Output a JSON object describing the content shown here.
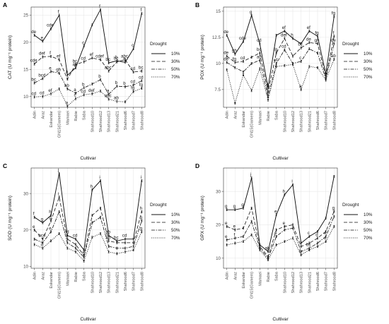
{
  "figure": {
    "xlabel": "Cultivar",
    "legend": {
      "title": "Drought",
      "labels": [
        "10%",
        "30%",
        "50%",
        "70%"
      ]
    },
    "colors": {
      "series": "#111111",
      "grid": "#dddddd"
    }
  },
  "chart_data": [
    {
      "type": "line",
      "panel": "A",
      "ylabel": "CAT (U mg⁻¹ protein)",
      "ylim": [
        8,
        26.5
      ],
      "yticks": [
        10,
        15,
        20,
        25
      ],
      "legend": "right",
      "grid": true,
      "categories": [
        "Adin",
        "Araz",
        "Eskandar",
        "GN15(Gamem)",
        "Mamaei",
        "Rabie",
        "Saba",
        "Shahrood10",
        "Shahrood12",
        "Shahrood13",
        "Shahrood21",
        "Shahrood6",
        "Shahrood7",
        "Shahrood8"
      ],
      "series": [
        {
          "name": "10%",
          "values": [
            21.3,
            20.2,
            22.5,
            25.0,
            13.9,
            15.3,
            19.3,
            23.2,
            26.0,
            16.2,
            16.6,
            16.3,
            18.8,
            25.3
          ],
          "labels": [
            "de",
            "e",
            "cde",
            "f",
            "a",
            "ab",
            "c",
            "",
            "f",
            "bc",
            "b",
            "b",
            "c",
            "f"
          ]
        },
        {
          "name": "30%",
          "values": [
            16.0,
            17.3,
            17.4,
            16.8,
            13.2,
            15.9,
            16.4,
            17.1,
            16.8,
            14.7,
            16.4,
            16.8,
            14.5,
            14.7
          ],
          "labels": [
            "cde",
            "def",
            "f",
            "ef",
            "",
            "bc",
            "cd",
            "ef",
            "cdef",
            "abc",
            "bc",
            "abc",
            "cd",
            "bc"
          ]
        },
        {
          "name": "50%",
          "values": [
            12.5,
            13.3,
            14.6,
            14.3,
            11.4,
            10.6,
            11.6,
            12.3,
            13.1,
            10.4,
            11.9,
            11.8,
            12.1,
            12.9
          ],
          "labels": [
            "bc",
            "bcd",
            "e",
            "gh",
            "ab",
            "a",
            "b",
            "",
            "b",
            "a",
            "b",
            "b",
            "cd",
            "cd"
          ]
        },
        {
          "name": "70%",
          "values": [
            9.9,
            10.0,
            10.5,
            11.4,
            8.2,
            9.6,
            10.3,
            10.5,
            11.0,
            9.5,
            9.1,
            9.0,
            10.9,
            11.5
          ],
          "labels": [
            "cd",
            "cd",
            "ef",
            "",
            "a",
            "c",
            "cd",
            "def",
            "",
            "abc",
            "ab",
            "",
            "fg",
            "fg"
          ]
        }
      ]
    },
    {
      "type": "line",
      "panel": "B",
      "ylabel": "POX (U mg⁻¹ protein)",
      "ylim": [
        5.8,
        15.4
      ],
      "yticks": [
        7.5,
        10.0,
        12.5,
        15.0
      ],
      "legend": "right",
      "grid": true,
      "categories": [
        "Adin",
        "Araz",
        "Eskandar",
        "GN15(Gamem)",
        "Mamaei",
        "Rabie",
        "Saba",
        "Shahrood10",
        "Shahrood12",
        "Shahrood13",
        "Shahrood21",
        "Shahrood6",
        "Shahrood7",
        "Shahrood8"
      ],
      "series": [
        {
          "name": "10%",
          "values": [
            12.7,
            10.9,
            12.1,
            14.6,
            11.9,
            7.7,
            12.7,
            13.1,
            12.4,
            11.9,
            13.1,
            12.6,
            9.0,
            14.5
          ],
          "labels": [
            "de",
            "gh",
            "cde",
            "g",
            "cd",
            "a",
            "",
            "ef",
            "h",
            "",
            "ef",
            "fg",
            "",
            "fg"
          ]
        },
        {
          "name": "30%",
          "values": [
            10.7,
            10.1,
            10.2,
            10.6,
            11.0,
            7.3,
            11.0,
            12.4,
            10.7,
            11.5,
            12.0,
            11.9,
            8.7,
            12.6
          ],
          "labels": [
            "de",
            "fg",
            "cd",
            "",
            "bc",
            "a",
            "fg",
            "def",
            "",
            "bc",
            "de",
            "gh",
            "",
            "f"
          ]
        },
        {
          "name": "50%",
          "values": [
            10.1,
            9.6,
            9.2,
            10.0,
            10.3,
            6.8,
            10.0,
            11.3,
            10.0,
            10.2,
            11.4,
            11.0,
            8.5,
            11.9
          ],
          "labels": [
            "de",
            "",
            "",
            "",
            "ab",
            "a",
            "ef",
            "cd",
            "",
            "c",
            "",
            "",
            "",
            "de"
          ]
        },
        {
          "name": "70%",
          "values": [
            9.4,
            6.2,
            8.9,
            7.4,
            9.5,
            6.5,
            9.7,
            9.8,
            9.9,
            7.5,
            9.7,
            9.6,
            8.4,
            10.4
          ],
          "labels": [
            "",
            "",
            "",
            "",
            "",
            "",
            "",
            "",
            "",
            "a",
            "",
            "",
            "",
            "ab"
          ]
        }
      ]
    },
    {
      "type": "line",
      "panel": "C",
      "ylabel": "SOD (U mg⁻¹ protein)",
      "ylim": [
        9.5,
        37
      ],
      "yticks": [
        10,
        20,
        30
      ],
      "legend": "right",
      "grid": true,
      "categories": [
        "Adin",
        "Araz",
        "Eskandar",
        "GN15(Gamem)",
        "Mamaei",
        "Rabie",
        "Saba",
        "Shahrood10",
        "Shahrood12",
        "Shahrood13",
        "Shahrood21",
        "Shahrood6",
        "Shahrood7",
        "Shahrood8"
      ],
      "series": [
        {
          "name": "10%",
          "values": [
            23.5,
            22.0,
            24.0,
            35.5,
            18.5,
            17.5,
            14.5,
            31.0,
            33.5,
            18.5,
            17.0,
            17.5,
            17.5,
            33.5
          ],
          "labels": [
            "f",
            "g",
            "h",
            "j",
            "cd",
            "cd",
            "",
            "h",
            "i",
            "ab",
            "bc",
            "cd",
            "",
            "i"
          ]
        },
        {
          "name": "30%",
          "values": [
            20.0,
            17.5,
            22.5,
            29.0,
            17.5,
            16.0,
            13.0,
            24.0,
            26.0,
            17.0,
            16.5,
            16.5,
            16.5,
            25.0
          ],
          "labels": [
            "e",
            "bcd",
            "g",
            "i",
            "",
            "",
            "a",
            "",
            "",
            "ab",
            "",
            "",
            "",
            "h"
          ]
        },
        {
          "name": "50%",
          "values": [
            17.5,
            16.5,
            19.5,
            25.0,
            16.5,
            15.0,
            12.5,
            22.0,
            23.5,
            15.5,
            15.0,
            15.0,
            15.5,
            22.5
          ],
          "labels": [
            "",
            "",
            "e",
            "",
            "",
            "",
            "",
            "",
            "",
            "",
            "",
            "",
            "",
            "g"
          ]
        },
        {
          "name": "70%",
          "values": [
            16.0,
            15.0,
            17.0,
            19.0,
            15.0,
            14.0,
            11.5,
            18.0,
            19.0,
            14.0,
            13.5,
            14.0,
            14.5,
            19.5
          ],
          "labels": [
            "",
            "d",
            "",
            "",
            "",
            "",
            "",
            "",
            "",
            "",
            "",
            "",
            "",
            "g"
          ]
        }
      ]
    },
    {
      "type": "line",
      "panel": "D",
      "ylabel": "GPX (U mg⁻¹ protein)",
      "ylim": [
        7,
        37
      ],
      "yticks": [
        10,
        20,
        30
      ],
      "legend": "right",
      "grid": true,
      "categories": [
        "Adin",
        "Araz",
        "Eskandar",
        "GN15(Gamem)",
        "Mamaei",
        "Rabie",
        "Saba",
        "Shahrood10",
        "Shahrood12",
        "Shahrood13",
        "Shahrood21",
        "Shahrood6",
        "Shahrood7",
        "Shahrood8"
      ],
      "series": [
        {
          "name": "10%",
          "values": [
            24.5,
            24.5,
            25.0,
            34.0,
            14.0,
            12.0,
            23.0,
            29.0,
            32.0,
            14.5,
            16.5,
            18.0,
            22.0,
            34.5
          ],
          "labels": [
            "g",
            "g",
            "g",
            "j",
            "",
            "ab",
            "e",
            "h",
            "i",
            "",
            "c",
            "",
            "",
            ""
          ]
        },
        {
          "name": "30%",
          "values": [
            19.5,
            18.5,
            19.0,
            25.0,
            13.5,
            10.5,
            18.5,
            19.5,
            20.0,
            13.5,
            14.5,
            16.0,
            18.0,
            24.0
          ],
          "labels": [
            "e",
            "e",
            "",
            "",
            "",
            "",
            "",
            "e",
            "",
            "",
            "",
            "d",
            "",
            "g"
          ]
        },
        {
          "name": "50%",
          "values": [
            15.5,
            16.0,
            16.5,
            21.0,
            13.0,
            10.0,
            16.5,
            18.5,
            19.0,
            12.0,
            13.0,
            14.5,
            16.5,
            22.5
          ],
          "labels": [
            "e",
            "f",
            "",
            "",
            "",
            "",
            "e",
            "",
            "",
            "",
            "bc",
            "",
            "e",
            ""
          ]
        },
        {
          "name": "70%",
          "values": [
            14.0,
            14.5,
            15.0,
            17.0,
            12.5,
            9.5,
            14.0,
            15.0,
            16.0,
            11.0,
            12.5,
            13.5,
            15.0,
            19.5
          ],
          "labels": [
            "",
            "",
            "",
            "",
            "",
            "",
            "",
            "",
            "",
            "b",
            "",
            "",
            "d",
            ""
          ]
        }
      ]
    }
  ]
}
